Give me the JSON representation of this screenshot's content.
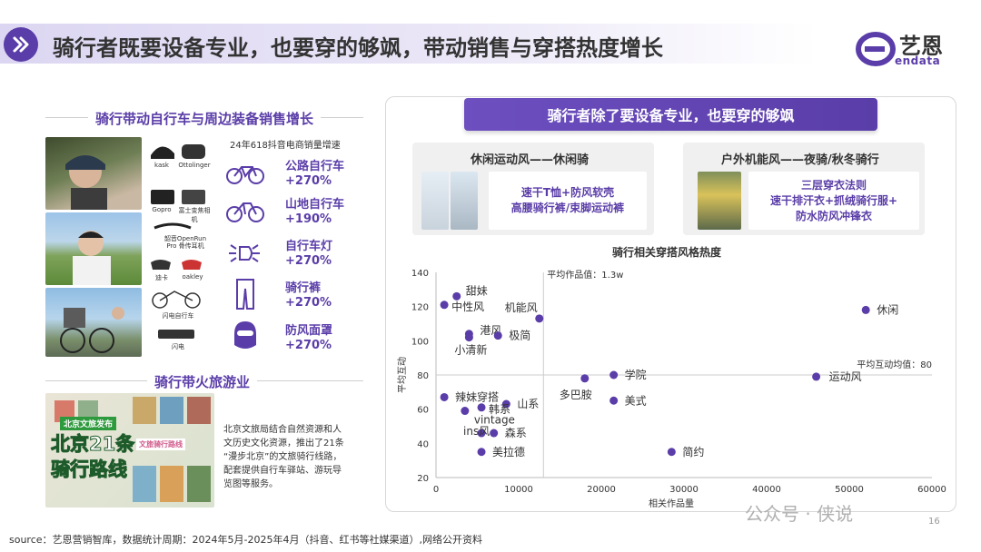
{
  "header": {
    "title": "骑行者既要设备专业，也要穿的够飒，带动销售与穿搭热度增长",
    "logo_cn": "艺恩",
    "logo_en": "endata"
  },
  "left": {
    "section1_title": "骑行带动自行车与周边装备销售增长",
    "sales_caption": "24年618抖音电商销量增速",
    "products": [
      {
        "name": "kask"
      },
      {
        "name": "Ottolinger"
      },
      {
        "name": "Gopro"
      },
      {
        "name": "富士变焦相机"
      },
      {
        "name": "韶音OpenRun Pro 骨传耳机"
      },
      {
        "name": "迪卡"
      },
      {
        "name": "oakley"
      },
      {
        "name": "闪电自行车"
      },
      {
        "name": "闪电"
      }
    ],
    "categories": [
      {
        "label": "公路自行车",
        "value": "+270%",
        "icon": "road-bike-icon"
      },
      {
        "label": "山地自行车",
        "value": "+190%",
        "icon": "mountain-bike-icon"
      },
      {
        "label": "自行车灯",
        "value": "+270%",
        "icon": "bike-light-icon"
      },
      {
        "label": "骑行裤",
        "value": "+270%",
        "icon": "cycling-pants-icon"
      },
      {
        "label": "防风面罩",
        "value": "+270%",
        "icon": "face-mask-icon"
      }
    ],
    "section2_title": "骑行带火旅游业",
    "poster_tag": "北京文旅发布",
    "poster_title_1": "北京21条",
    "poster_title_2": "骑行路线",
    "poster_subtitle": "文旅骑行路线",
    "tourism_text": [
      "北京文旅局结合自然资源和人",
      "文历史文化资源，推出了21条",
      "“漫步北京”的文旅骑行线路，",
      "配套提供自行车驿站、游玩导",
      "览图等服务。"
    ]
  },
  "right": {
    "banner": "骑行者除了要设备专业，也要穿的够飒",
    "card1": {
      "title": "休闲运动风——休闲骑",
      "lines": [
        "速干T恤+防风软壳",
        "高腰骑行裤/束脚运动裤"
      ]
    },
    "card2": {
      "title": "户外机能风——夜骑/秋冬骑行",
      "lines": [
        "三层穿衣法则",
        "速干排汗衣+抓绒骑行服+",
        "防水防风冲锋衣"
      ]
    }
  },
  "chart_data": {
    "type": "scatter",
    "title": "骑行相关穿搭风格热度",
    "xlabel": "相关作品量",
    "ylabel": "平均互动",
    "xlim": [
      0,
      60000
    ],
    "ylim": [
      20,
      140
    ],
    "xticks": [
      "0",
      "10000",
      "20000",
      "30000",
      "40000",
      "50000",
      "60000"
    ],
    "yticks": [
      "20",
      "40",
      "60",
      "80",
      "100",
      "120",
      "140"
    ],
    "vline_label": "平均作品值：1.3w",
    "vline_x": 13000,
    "hline_label": "平均互动均值：80",
    "hline_y": 80,
    "point_color": "#5a3da8",
    "points": [
      {
        "label": "甜妹",
        "x": 2500,
        "y": 126
      },
      {
        "label": "中性风",
        "x": 1000,
        "y": 121
      },
      {
        "label": "机能风",
        "x": 12500,
        "y": 113
      },
      {
        "label": "港风",
        "x": 4000,
        "y": 104
      },
      {
        "label": "小清新",
        "x": 4000,
        "y": 102
      },
      {
        "label": "极简",
        "x": 7500,
        "y": 103
      },
      {
        "label": "休闲",
        "x": 52000,
        "y": 118
      },
      {
        "label": "学院",
        "x": 21500,
        "y": 80
      },
      {
        "label": "多巴胺",
        "x": 18000,
        "y": 78
      },
      {
        "label": "运动风",
        "x": 46000,
        "y": 79
      },
      {
        "label": "辣妹穿搭",
        "x": 1000,
        "y": 67
      },
      {
        "label": "山系",
        "x": 8500,
        "y": 63
      },
      {
        "label": "韩系",
        "x": 5500,
        "y": 61
      },
      {
        "label": "美式",
        "x": 21500,
        "y": 65
      },
      {
        "label": "vintage",
        "x": 3500,
        "y": 59
      },
      {
        "label": "ins风",
        "x": 5500,
        "y": 46
      },
      {
        "label": "森系",
        "x": 7000,
        "y": 46
      },
      {
        "label": "美拉德",
        "x": 5500,
        "y": 35
      },
      {
        "label": "简约",
        "x": 28500,
        "y": 35
      }
    ]
  },
  "footer": {
    "source": "source：艺恩营销智库，数据统计周期：2024年5月-2025年4月（抖音、红书等社媒渠道）,网络公开资料",
    "watermark": "公众号 · 侠说",
    "page": "16"
  }
}
